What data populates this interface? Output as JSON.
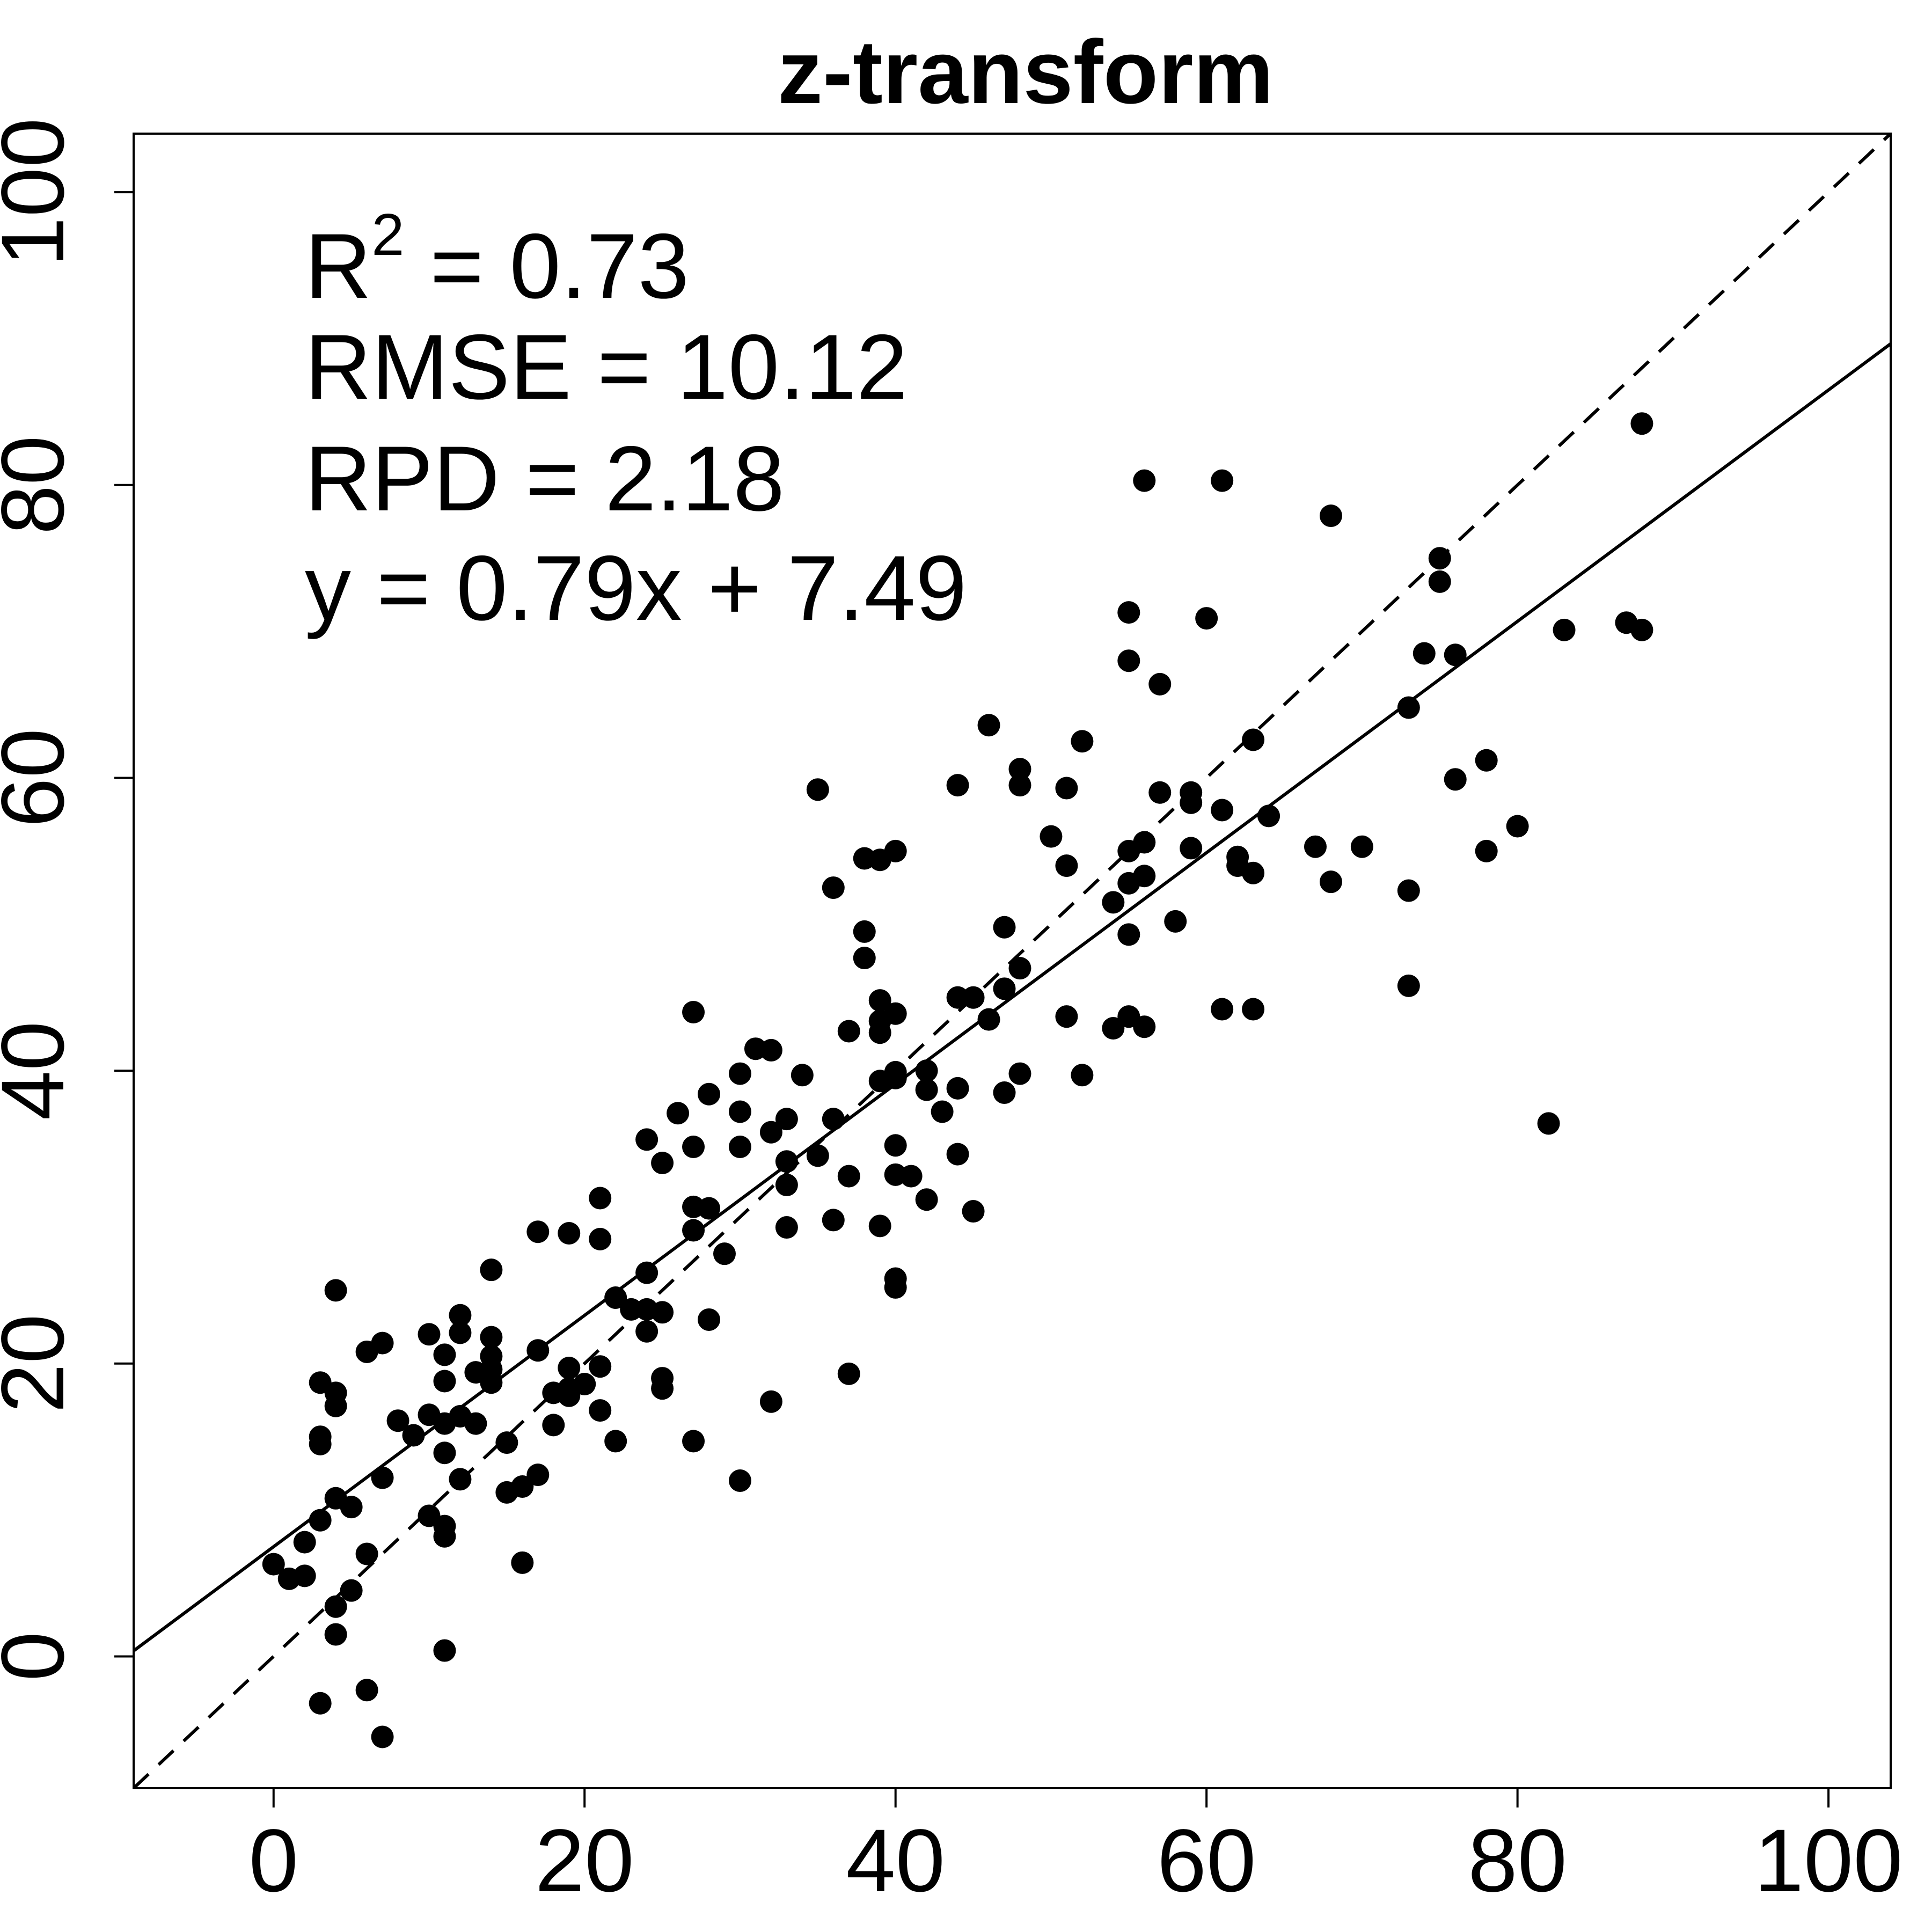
{
  "chart_data": {
    "type": "scatter",
    "title": "z-transform",
    "xlabel": "",
    "ylabel": "",
    "xlim": [
      -9,
      104
    ],
    "ylim": [
      -9,
      104
    ],
    "xticks": [
      "0",
      "20",
      "40",
      "60",
      "80",
      "100"
    ],
    "yticks": [
      "0",
      "20",
      "40",
      "60",
      "80",
      "100"
    ],
    "grid": false,
    "stats": {
      "r2_label": "R",
      "r2_sup": "2",
      "r2_value": " = 0.73",
      "rmse": "RMSE = 10.12",
      "rpd": "RPD = 2.18",
      "equation": "y = 0.79x + 7.49"
    },
    "lines": {
      "fit": {
        "slope": 0.79,
        "intercept": 7.49,
        "style": "solid"
      },
      "identity": {
        "slope": 1,
        "intercept": 0,
        "style": "dashed"
      }
    },
    "colors": {
      "points": "#000000",
      "axes": "#000000",
      "background": "#ffffff"
    },
    "points": [
      [
        0,
        6.3
      ],
      [
        1,
        5.3
      ],
      [
        2,
        5.5
      ],
      [
        2,
        7.8
      ],
      [
        3,
        9.3
      ],
      [
        3,
        14.5
      ],
      [
        3,
        15.0
      ],
      [
        3,
        18.7
      ],
      [
        3,
        -3.2
      ],
      [
        4,
        25.0
      ],
      [
        4,
        18.0
      ],
      [
        4,
        17.1
      ],
      [
        4,
        10.8
      ],
      [
        4,
        3.4
      ],
      [
        4,
        1.5
      ],
      [
        5,
        10.2
      ],
      [
        5,
        4.5
      ],
      [
        6,
        20.8
      ],
      [
        6,
        7.0
      ],
      [
        6,
        -2.3
      ],
      [
        7,
        21.4
      ],
      [
        7,
        12.2
      ],
      [
        7,
        -5.5
      ],
      [
        8,
        16.1
      ],
      [
        9,
        15.1
      ],
      [
        10,
        22.0
      ],
      [
        10,
        16.5
      ],
      [
        10,
        9.6
      ],
      [
        11,
        20.6
      ],
      [
        11,
        18.8
      ],
      [
        11,
        15.9
      ],
      [
        11,
        13.9
      ],
      [
        11,
        8.9
      ],
      [
        11,
        8.2
      ],
      [
        11,
        0.4
      ],
      [
        12,
        23.3
      ],
      [
        12,
        22.1
      ],
      [
        12,
        16.4
      ],
      [
        12,
        12.1
      ],
      [
        13,
        19.4
      ],
      [
        13,
        15.9
      ],
      [
        14,
        26.4
      ],
      [
        14,
        21.8
      ],
      [
        14,
        20.5
      ],
      [
        14,
        19.6
      ],
      [
        14,
        18.7
      ],
      [
        15,
        14.6
      ],
      [
        15,
        11.2
      ],
      [
        16,
        11.6
      ],
      [
        16,
        6.4
      ],
      [
        17,
        29.0
      ],
      [
        17,
        20.9
      ],
      [
        17,
        12.4
      ],
      [
        18,
        18.0
      ],
      [
        18,
        15.8
      ],
      [
        19,
        28.9
      ],
      [
        19,
        19.7
      ],
      [
        19,
        18.3
      ],
      [
        19,
        17.8
      ],
      [
        20,
        18.6
      ],
      [
        21,
        31.3
      ],
      [
        21,
        28.5
      ],
      [
        21,
        19.8
      ],
      [
        21,
        16.8
      ],
      [
        22,
        24.5
      ],
      [
        22,
        14.7
      ],
      [
        23,
        23.7
      ],
      [
        24,
        35.3
      ],
      [
        24,
        26.2
      ],
      [
        24,
        23.7
      ],
      [
        24,
        22.2
      ],
      [
        25,
        33.7
      ],
      [
        25,
        23.5
      ],
      [
        25,
        19.0
      ],
      [
        25,
        18.3
      ],
      [
        26,
        37.1
      ],
      [
        27,
        44.0
      ],
      [
        27,
        34.8
      ],
      [
        27,
        30.7
      ],
      [
        27,
        29.1
      ],
      [
        27,
        14.7
      ],
      [
        28,
        38.4
      ],
      [
        28,
        30.6
      ],
      [
        28,
        23.0
      ],
      [
        29,
        27.5
      ],
      [
        30,
        39.8
      ],
      [
        30,
        37.2
      ],
      [
        30,
        34.8
      ],
      [
        30,
        12.0
      ],
      [
        31,
        41.5
      ],
      [
        32,
        41.4
      ],
      [
        32,
        35.8
      ],
      [
        32,
        17.4
      ],
      [
        33,
        36.7
      ],
      [
        33,
        33.8
      ],
      [
        33,
        32.2
      ],
      [
        33,
        29.3
      ],
      [
        34,
        39.7
      ],
      [
        35,
        59.2
      ],
      [
        35,
        34.2
      ],
      [
        36,
        52.5
      ],
      [
        36,
        36.7
      ],
      [
        36,
        29.8
      ],
      [
        37,
        42.7
      ],
      [
        37,
        32.8
      ],
      [
        37,
        19.3
      ],
      [
        38,
        54.5
      ],
      [
        38,
        49.5
      ],
      [
        38,
        47.7
      ],
      [
        39,
        54.4
      ],
      [
        39,
        44.8
      ],
      [
        39,
        43.4
      ],
      [
        39,
        42.6
      ],
      [
        39,
        39.3
      ],
      [
        39,
        29.4
      ],
      [
        40,
        55.0
      ],
      [
        40,
        43.9
      ],
      [
        40,
        39.9
      ],
      [
        40,
        39.5
      ],
      [
        40,
        34.9
      ],
      [
        40,
        32.9
      ],
      [
        40,
        25.8
      ],
      [
        40,
        25.2
      ],
      [
        41,
        32.8
      ],
      [
        42,
        40.0
      ],
      [
        42,
        38.7
      ],
      [
        42,
        31.2
      ],
      [
        43,
        37.2
      ],
      [
        44,
        59.5
      ],
      [
        44,
        45.0
      ],
      [
        44,
        38.8
      ],
      [
        44,
        34.3
      ],
      [
        45,
        45.0
      ],
      [
        45,
        30.4
      ],
      [
        46,
        63.6
      ],
      [
        46,
        43.5
      ],
      [
        47,
        49.8
      ],
      [
        47,
        45.6
      ],
      [
        47,
        38.5
      ],
      [
        48,
        60.6
      ],
      [
        48,
        59.5
      ],
      [
        48,
        47.0
      ],
      [
        48,
        39.8
      ],
      [
        50,
        56.0
      ],
      [
        51,
        59.3
      ],
      [
        51,
        54.0
      ],
      [
        51,
        43.7
      ],
      [
        52,
        62.5
      ],
      [
        52,
        39.7
      ],
      [
        54,
        51.5
      ],
      [
        54,
        42.9
      ],
      [
        55,
        71.3
      ],
      [
        55,
        68.0
      ],
      [
        55,
        55.0
      ],
      [
        55,
        52.8
      ],
      [
        55,
        49.3
      ],
      [
        55,
        43.7
      ],
      [
        56,
        80.3
      ],
      [
        56,
        55.6
      ],
      [
        56,
        53.3
      ],
      [
        56,
        43.0
      ],
      [
        57,
        66.4
      ],
      [
        57,
        59.0
      ],
      [
        58,
        50.2
      ],
      [
        59,
        59.0
      ],
      [
        59,
        58.3
      ],
      [
        59,
        55.2
      ],
      [
        60,
        70.9
      ],
      [
        61,
        80.3
      ],
      [
        61,
        57.8
      ],
      [
        61,
        44.2
      ],
      [
        62,
        54.6
      ],
      [
        62,
        54.0
      ],
      [
        63,
        62.6
      ],
      [
        63,
        53.5
      ],
      [
        63,
        44.2
      ],
      [
        64,
        57.4
      ],
      [
        67,
        55.3
      ],
      [
        68,
        77.9
      ],
      [
        68,
        52.9
      ],
      [
        70,
        55.3
      ],
      [
        73,
        64.8
      ],
      [
        73,
        52.3
      ],
      [
        73,
        45.8
      ],
      [
        74,
        68.5
      ],
      [
        75,
        75.0
      ],
      [
        75,
        73.4
      ],
      [
        76,
        68.4
      ],
      [
        76,
        59.9
      ],
      [
        78,
        61.2
      ],
      [
        78,
        55.0
      ],
      [
        80,
        56.7
      ],
      [
        82,
        36.4
      ],
      [
        83,
        70.1
      ],
      [
        87,
        70.6
      ],
      [
        88,
        84.2
      ],
      [
        88,
        70.1
      ]
    ]
  }
}
